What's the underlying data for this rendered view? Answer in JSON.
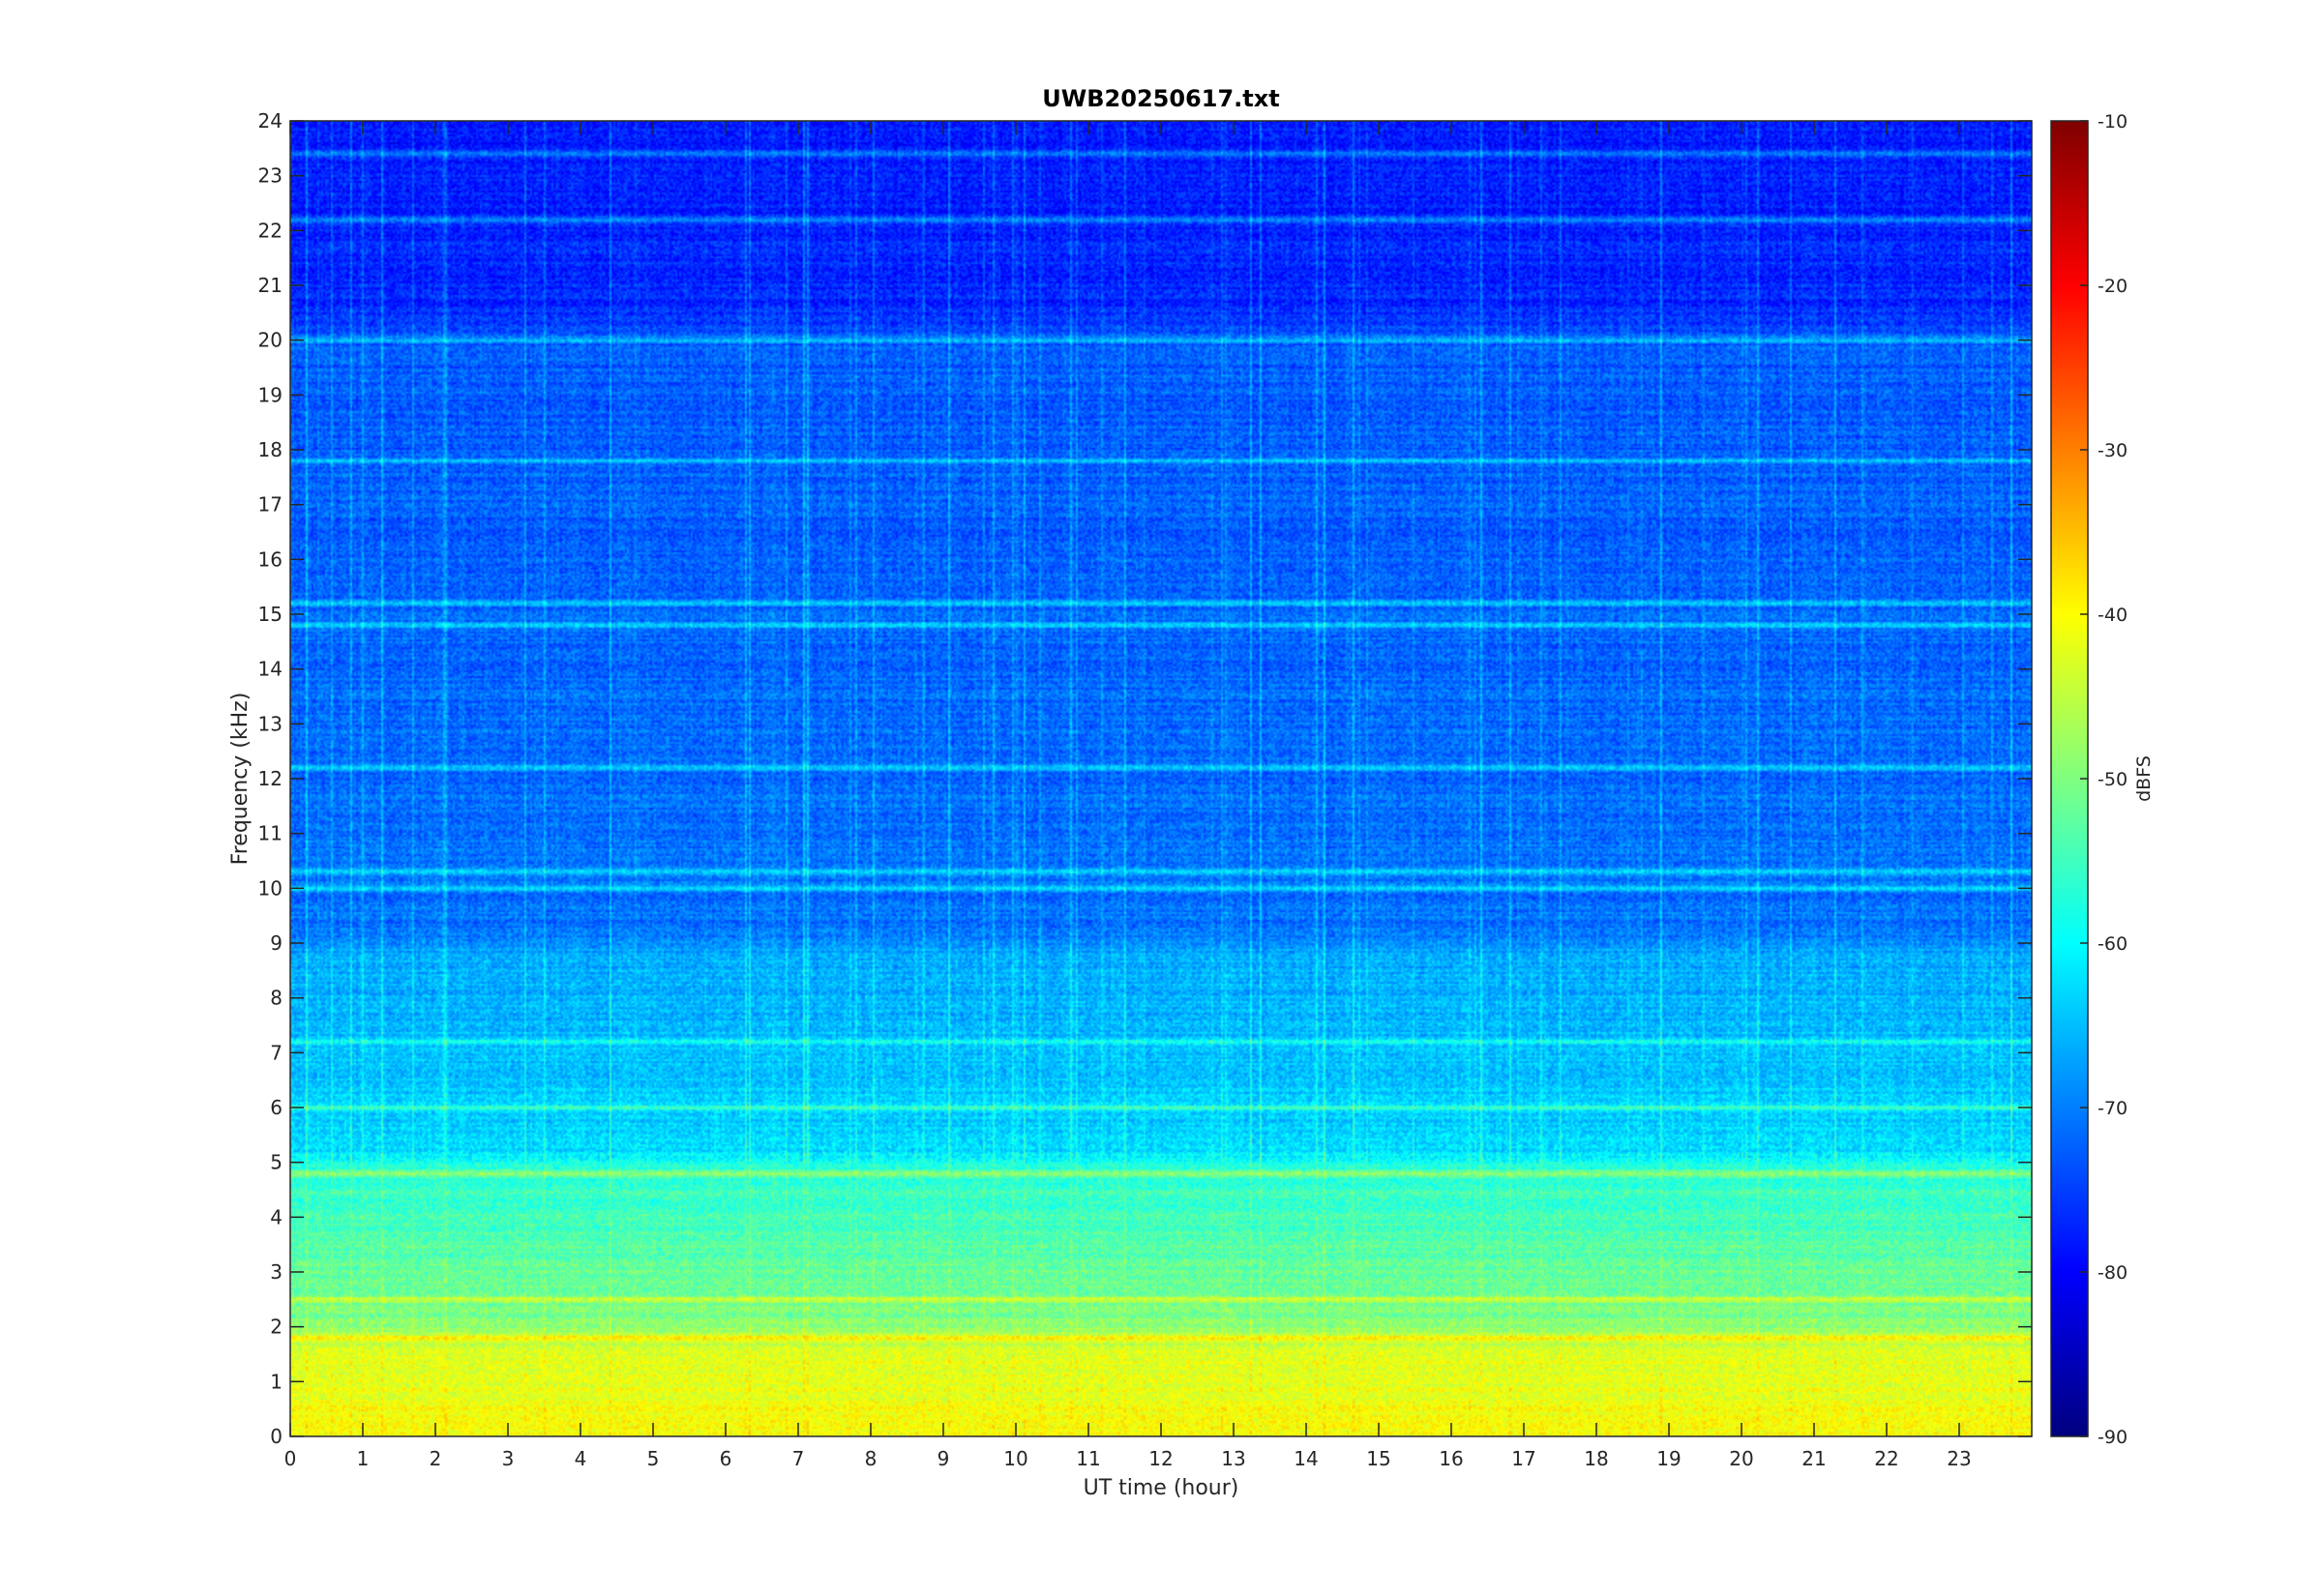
{
  "chart_data": {
    "type": "heatmap",
    "title": "UWB20250617.txt",
    "xlabel": "UT time (hour)",
    "ylabel": "Frequency (kHz)",
    "xlim": [
      0,
      24
    ],
    "ylim": [
      0,
      24
    ],
    "x_ticks": [
      0,
      1,
      2,
      3,
      4,
      5,
      6,
      7,
      8,
      9,
      10,
      11,
      12,
      13,
      14,
      15,
      16,
      17,
      18,
      19,
      20,
      21,
      22,
      23
    ],
    "y_ticks": [
      0,
      1,
      2,
      3,
      4,
      5,
      6,
      7,
      8,
      9,
      10,
      11,
      12,
      13,
      14,
      15,
      16,
      17,
      18,
      19,
      20,
      21,
      22,
      23,
      24
    ],
    "colorbar": {
      "label": "dBFS",
      "range": [
        -90,
        -10
      ],
      "ticks": [
        -90,
        -80,
        -70,
        -60,
        -50,
        -40,
        -30,
        -20,
        -10
      ],
      "colormap": "jet"
    },
    "grid": false,
    "approx_levels_dbfs": {
      "0_to_2_kHz": -43,
      "2_to_5_kHz": -54,
      "5_to_9_kHz": -66,
      "9_to_20_kHz": -73,
      "20_to_24_kHz": -78
    },
    "notable_bands_khz": [
      1.8,
      2.5,
      4.8,
      6.0,
      7.2,
      10.0,
      10.3,
      12.2,
      14.8,
      15.2,
      17.8,
      20.0,
      22.2,
      23.4
    ]
  }
}
